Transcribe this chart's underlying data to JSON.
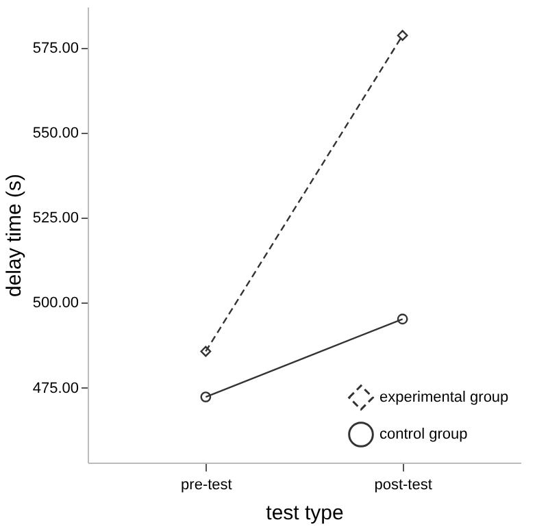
{
  "chart_data": {
    "type": "line",
    "xlabel": "test type",
    "ylabel": "delay time (s)",
    "categories": [
      "pre-test",
      "post-test"
    ],
    "series": [
      {
        "name": "experimental group",
        "color": "#333333",
        "values": [
          485.7,
          578.6
        ],
        "marker": "diamond",
        "line_style": "dashed"
      },
      {
        "name": "control group",
        "color": "#333333",
        "values": [
          472.3,
          495.2
        ],
        "marker": "circle",
        "line_style": "solid"
      }
    ],
    "ylim": [
      453,
      587
    ],
    "yticks": [
      {
        "value": 475,
        "label": "475.00"
      },
      {
        "value": 500,
        "label": "500.00"
      },
      {
        "value": 525,
        "label": "525.00"
      },
      {
        "value": 550,
        "label": "550.00"
      },
      {
        "value": 575,
        "label": "575.00"
      }
    ],
    "grid": false,
    "legend": "bottom right"
  }
}
